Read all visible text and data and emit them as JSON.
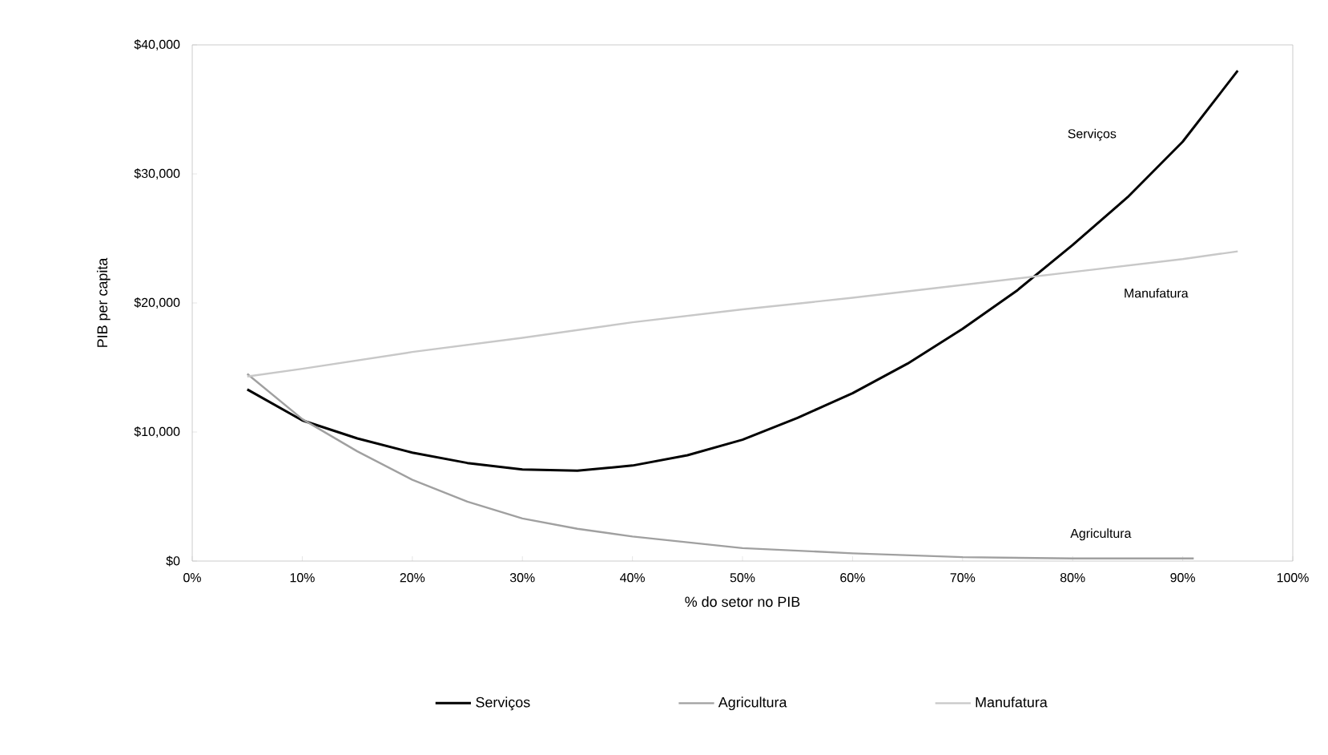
{
  "chart_data": {
    "type": "line",
    "xlabel": "% do setor no PIB",
    "ylabel": "PIB per capita",
    "xlim": [
      0,
      100
    ],
    "xticks": [
      {
        "value": 0,
        "label": "0%"
      },
      {
        "value": 10,
        "label": "10%"
      },
      {
        "value": 20,
        "label": "20%"
      },
      {
        "value": 30,
        "label": "30%"
      },
      {
        "value": 40,
        "label": "40%"
      },
      {
        "value": 50,
        "label": "50%"
      },
      {
        "value": 60,
        "label": "60%"
      },
      {
        "value": 70,
        "label": "70%"
      },
      {
        "value": 80,
        "label": "80%"
      },
      {
        "value": 90,
        "label": "90%"
      },
      {
        "value": 100,
        "label": "100%"
      }
    ],
    "ylim": [
      0,
      40000
    ],
    "yticks": [
      {
        "value": 0,
        "label": "$0"
      },
      {
        "value": 10000,
        "label": "$10,000"
      },
      {
        "value": 20000,
        "label": "$20,000"
      },
      {
        "value": 30000,
        "label": "$30,000"
      },
      {
        "value": 40000,
        "label": "$40,000"
      }
    ],
    "grid": false,
    "legend": "bottom",
    "marker": "none",
    "line_style": "solid",
    "series": [
      {
        "name": "Serviços",
        "color": "#000000",
        "x": [
          5,
          10,
          15,
          20,
          25,
          30,
          35,
          40,
          45,
          50,
          55,
          60,
          65,
          70,
          75,
          80,
          85,
          90,
          95
        ],
        "values": [
          13300,
          10900,
          9500,
          8400,
          7600,
          7100,
          7000,
          7400,
          8200,
          9400,
          11100,
          13000,
          15300,
          18000,
          21000,
          24500,
          28200,
          32500,
          38000
        ]
      },
      {
        "name": "Agricultura",
        "color": "#a0a0a0",
        "x": [
          5,
          10,
          15,
          20,
          25,
          30,
          35,
          40,
          50,
          60,
          70,
          80,
          91
        ],
        "values": [
          14500,
          11000,
          8500,
          6300,
          4600,
          3300,
          2500,
          1900,
          1000,
          600,
          300,
          200,
          200
        ]
      },
      {
        "name": "Manufatura",
        "color": "#c8c8c8",
        "x": [
          5,
          10,
          20,
          30,
          40,
          50,
          60,
          70,
          80,
          90,
          95
        ],
        "values": [
          14300,
          14900,
          16200,
          17300,
          18500,
          19500,
          20400,
          21400,
          22400,
          23400,
          24000
        ]
      }
    ]
  }
}
